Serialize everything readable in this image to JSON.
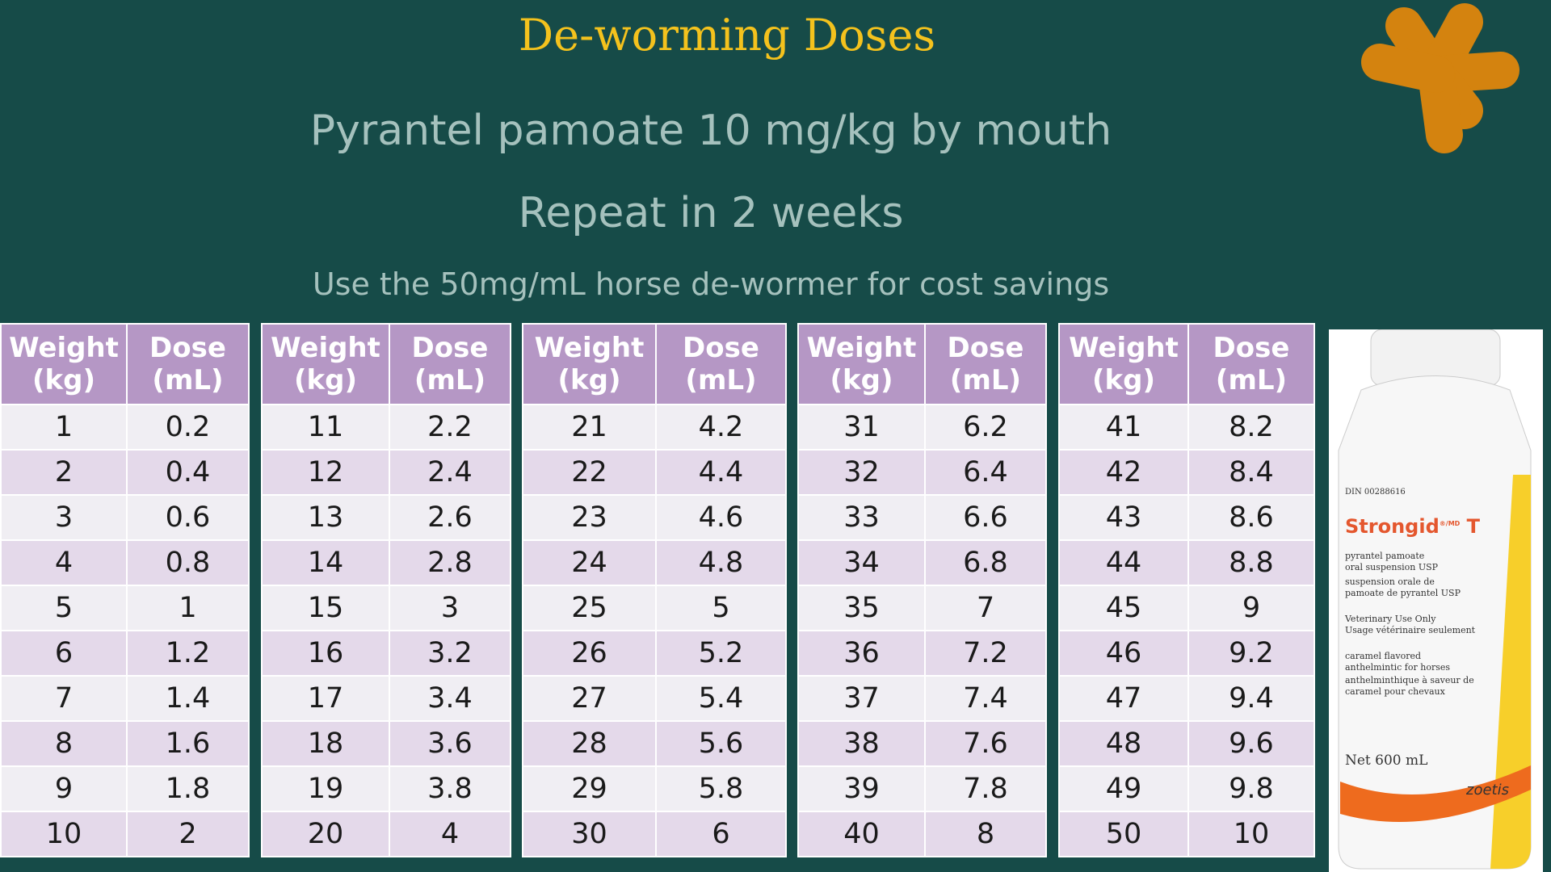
{
  "title": "De-worming Doses",
  "subtitle": "Pyrantel pamoate 10 mg/kg by mouth",
  "repeat": "Repeat in 2 weeks",
  "note": "Use the 50mg/mL horse de-wormer for cost savings",
  "tables": [
    {
      "headers": [
        "Weight (kg)",
        "Dose (mL)"
      ],
      "rows": [
        [
          "1",
          "0.2"
        ],
        [
          "2",
          "0.4"
        ],
        [
          "3",
          "0.6"
        ],
        [
          "4",
          "0.8"
        ],
        [
          "5",
          "1"
        ],
        [
          "6",
          "1.2"
        ],
        [
          "7",
          "1.4"
        ],
        [
          "8",
          "1.6"
        ],
        [
          "9",
          "1.8"
        ],
        [
          "10",
          "2"
        ]
      ]
    },
    {
      "headers": [
        "Weight (kg)",
        "Dose (mL)"
      ],
      "rows": [
        [
          "11",
          "2.2"
        ],
        [
          "12",
          "2.4"
        ],
        [
          "13",
          "2.6"
        ],
        [
          "14",
          "2.8"
        ],
        [
          "15",
          "3"
        ],
        [
          "16",
          "3.2"
        ],
        [
          "17",
          "3.4"
        ],
        [
          "18",
          "3.6"
        ],
        [
          "19",
          "3.8"
        ],
        [
          "20",
          "4"
        ]
      ]
    },
    {
      "headers": [
        "Weight (kg)",
        "Dose (mL)"
      ],
      "rows": [
        [
          "21",
          "4.2"
        ],
        [
          "22",
          "4.4"
        ],
        [
          "23",
          "4.6"
        ],
        [
          "24",
          "4.8"
        ],
        [
          "25",
          "5"
        ],
        [
          "26",
          "5.2"
        ],
        [
          "27",
          "5.4"
        ],
        [
          "28",
          "5.6"
        ],
        [
          "29",
          "5.8"
        ],
        [
          "30",
          "6"
        ]
      ]
    },
    {
      "headers": [
        "Weight (kg)",
        "Dose (mL)"
      ],
      "rows": [
        [
          "31",
          "6.2"
        ],
        [
          "32",
          "6.4"
        ],
        [
          "33",
          "6.6"
        ],
        [
          "34",
          "6.8"
        ],
        [
          "35",
          "7"
        ],
        [
          "36",
          "7.2"
        ],
        [
          "37",
          "7.4"
        ],
        [
          "38",
          "7.6"
        ],
        [
          "39",
          "7.8"
        ],
        [
          "40",
          "8"
        ]
      ]
    },
    {
      "headers": [
        "Weight (kg)",
        "Dose (mL)"
      ],
      "rows": [
        [
          "41",
          "8.2"
        ],
        [
          "42",
          "8.4"
        ],
        [
          "43",
          "8.6"
        ],
        [
          "44",
          "8.8"
        ],
        [
          "45",
          "9"
        ],
        [
          "46",
          "9.2"
        ],
        [
          "47",
          "9.4"
        ],
        [
          "48",
          "9.6"
        ],
        [
          "49",
          "9.8"
        ],
        [
          "50",
          "10"
        ]
      ]
    }
  ],
  "bottle": {
    "din": "DIN 00288616",
    "brand": "Strongid",
    "mark": "®/MD",
    "suffix": "T",
    "lines": [
      "pyrantel pamoate",
      "oral suspension USP",
      "suspension orale de",
      "pamoate de pyrantel USP",
      "Veterinary Use Only",
      "Usage vétérinaire seulement",
      "caramel flavored",
      "anthelmintic for horses",
      "anthelminthique à saveur de",
      "caramel pour chevaux"
    ],
    "net": "Net 600 mL",
    "maker": "zoetis"
  }
}
